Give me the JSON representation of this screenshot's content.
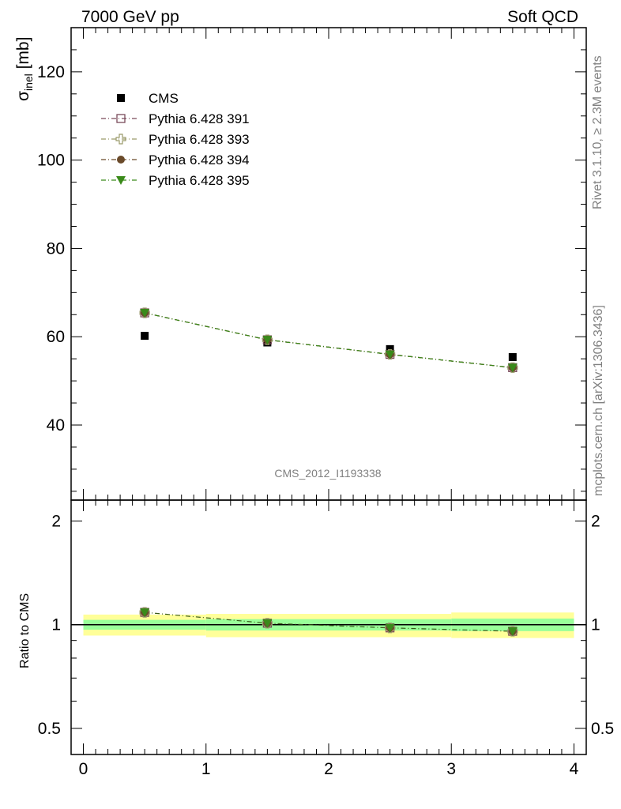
{
  "header": {
    "left": "7000 GeV pp",
    "right": "Soft QCD"
  },
  "side_text": {
    "top": "Rivet 3.1.10, ≥ 2.3M events",
    "bottom": "mcplots.cern.ch [arXiv:1306.3436]"
  },
  "analysis_label": "CMS_2012_I1193338",
  "colors": {
    "cms": "#000000",
    "p391": "#7a4a5a",
    "p393": "#9a9a6a",
    "p394": "#6a4a2a",
    "p395": "#3a8a1a",
    "band_inner": "#99ff99",
    "band_outer": "#ffff99"
  },
  "chart_data": [
    {
      "type": "scatter",
      "ylabel_main": "σ",
      "ylabel_sub": "inel",
      "ylabel_unit": " [mb]",
      "xlim": [
        -0.1,
        4.1
      ],
      "ylim": [
        23,
        130
      ],
      "yticks": [
        40,
        60,
        80,
        100,
        120
      ],
      "legend": {
        "placement": "top-left"
      },
      "series": [
        {
          "name": "CMS",
          "marker": "square-filled",
          "x": [
            0.5,
            1.5,
            2.5,
            3.5
          ],
          "y": [
            60.2,
            58.7,
            57.2,
            55.4
          ]
        },
        {
          "name": "Pythia 6.428 391",
          "marker": "square-open",
          "x": [
            0.5,
            1.5,
            2.5,
            3.5
          ],
          "y": [
            65.4,
            59.3,
            56.0,
            53.0
          ]
        },
        {
          "name": "Pythia 6.428 393",
          "marker": "cross-open",
          "x": [
            0.5,
            1.5,
            2.5,
            3.5
          ],
          "y": [
            65.4,
            59.3,
            56.0,
            53.0
          ]
        },
        {
          "name": "Pythia 6.428 394",
          "marker": "circle-filled",
          "x": [
            0.5,
            1.5,
            2.5,
            3.5
          ],
          "y": [
            65.4,
            59.3,
            56.0,
            53.0
          ]
        },
        {
          "name": "Pythia 6.428 395",
          "marker": "triangle-down-filled",
          "x": [
            0.5,
            1.5,
            2.5,
            3.5
          ],
          "y": [
            65.4,
            59.3,
            56.0,
            53.0
          ]
        }
      ]
    },
    {
      "type": "line",
      "ylabel": "Ratio to CMS",
      "xlim": [
        -0.1,
        4.1
      ],
      "ylim": [
        0.42,
        2.3
      ],
      "yscale": "log",
      "yticks": [
        0.5,
        1,
        2
      ],
      "xticks": [
        0,
        1,
        2,
        3,
        4
      ],
      "bands": [
        {
          "x0": 0,
          "x1": 1,
          "inner": [
            0.967,
            1.033
          ],
          "outer": [
            0.93,
            1.07
          ]
        },
        {
          "x0": 1,
          "x1": 2,
          "inner": [
            0.962,
            1.038
          ],
          "outer": [
            0.92,
            1.075
          ]
        },
        {
          "x0": 2,
          "x1": 3,
          "inner": [
            0.962,
            1.038
          ],
          "outer": [
            0.92,
            1.075
          ]
        },
        {
          "x0": 3,
          "x1": 4,
          "inner": [
            0.958,
            1.042
          ],
          "outer": [
            0.915,
            1.085
          ]
        }
      ],
      "ratio": {
        "x": [
          0.5,
          1.5,
          2.5,
          3.5
        ],
        "y": [
          1.086,
          1.01,
          0.979,
          0.957
        ]
      }
    }
  ]
}
